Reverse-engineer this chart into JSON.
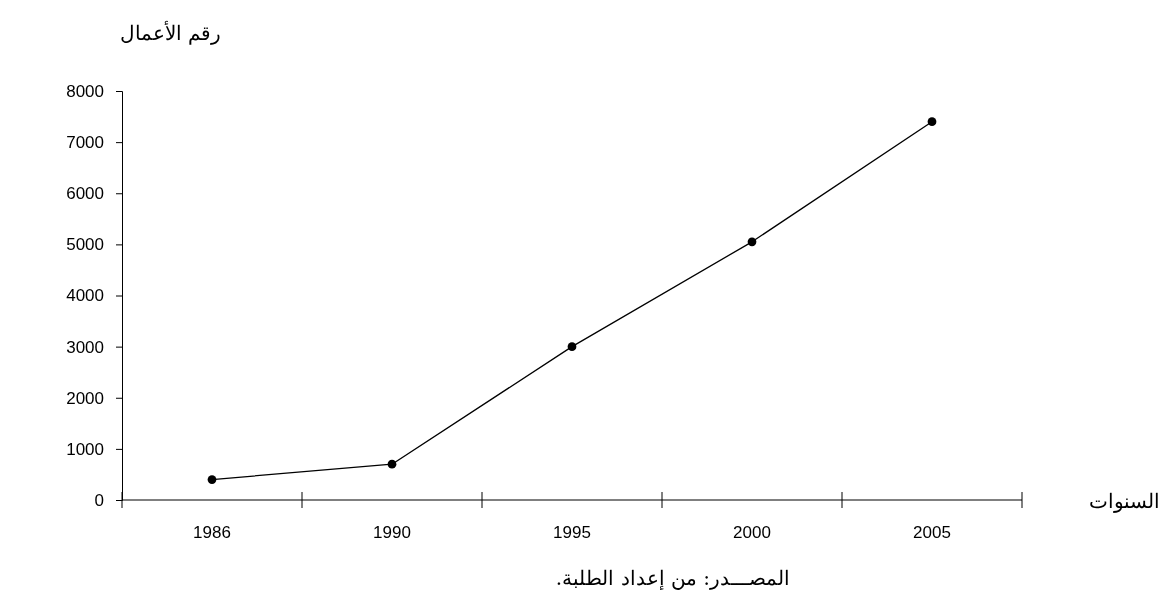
{
  "chart_data": {
    "type": "line",
    "ylabel": "رقم الأعمال",
    "xlabel": "السنوات",
    "categories": [
      "1986",
      "1990",
      "1995",
      "2000",
      "2005"
    ],
    "series": [
      {
        "color": "#000000",
        "values": [
          400,
          700,
          3000,
          5050,
          7400
        ]
      }
    ],
    "ylim": [
      0,
      8000
    ],
    "yticks": [
      0,
      1000,
      2000,
      3000,
      4000,
      5000,
      6000,
      7000,
      8000
    ],
    "grid": false,
    "marker": "circle",
    "line_style": "solid",
    "annotations": [
      "المصـــدر: من إعداد الطلبة."
    ]
  }
}
